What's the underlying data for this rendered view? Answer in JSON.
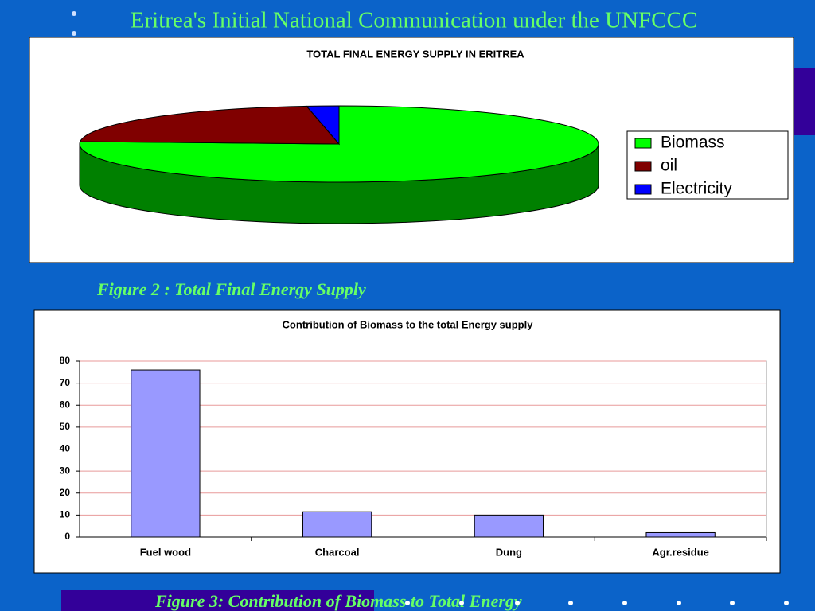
{
  "title": "Eritrea's Initial National Communication under the UNFCCC",
  "captions": [
    "Figure 2 : Total Final Energy Supply",
    "Figure 3: Contribution of Biomass to Total Energy"
  ],
  "chart_data": [
    {
      "type": "pie",
      "title": "TOTAL FINAL ENERGY SUPPLY IN ERITREA",
      "categories": [
        "Biomass",
        "oil",
        "Electricity"
      ],
      "values": [
        76,
        22,
        2
      ],
      "colors": [
        "#00ff00",
        "#800000",
        "#0000ff"
      ],
      "side_colors": [
        "#008000",
        "#400000",
        "#000080"
      ],
      "legend": "right"
    },
    {
      "type": "bar",
      "title": "Contribution of Biomass to the total Energy supply",
      "categories": [
        "Fuel wood",
        "Charcoal",
        "Dung",
        "Agr.residue"
      ],
      "values": [
        76,
        11.5,
        10,
        2
      ],
      "color": "#9999ff",
      "ylim": [
        0,
        80
      ],
      "yticks": [
        0,
        10,
        20,
        30,
        40,
        50,
        60,
        70,
        80
      ],
      "grid": true
    }
  ]
}
